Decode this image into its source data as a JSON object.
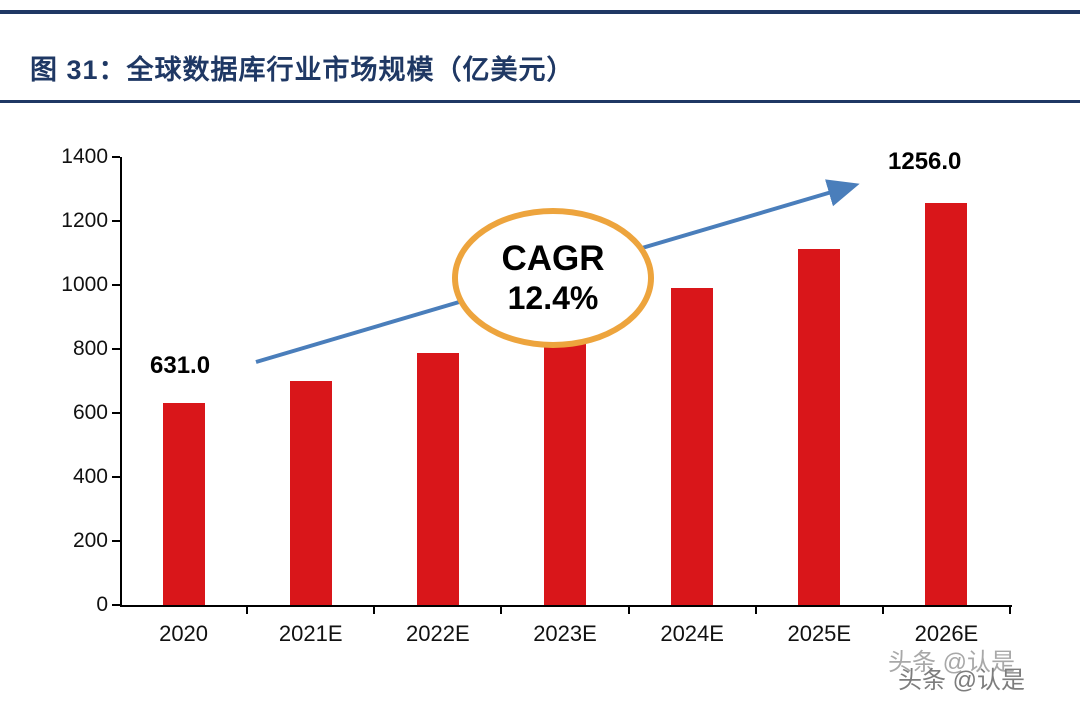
{
  "header": {
    "title": "图 31：全球数据库行业市场规模（亿美元）"
  },
  "chart_data": {
    "type": "bar",
    "title": "全球数据库行业市场规模（亿美元）",
    "unit": "亿美元",
    "categories": [
      "2020",
      "2021E",
      "2022E",
      "2023E",
      "2024E",
      "2025E",
      "2026E"
    ],
    "values": [
      631,
      700,
      787,
      882,
      992,
      1113,
      1256
    ],
    "xlabel": "",
    "ylabel": "",
    "ylim": [
      0,
      1400
    ],
    "yticks": [
      0,
      200,
      400,
      600,
      800,
      1000,
      1200,
      1400
    ],
    "grid": false,
    "legend": "none",
    "bar_color": "#d9161a",
    "annotations": {
      "first_label": "631.0",
      "last_label": "1256.0",
      "cagr_line1": "CAGR",
      "cagr_line2": "12.4%",
      "arrow_color": "#4a7ebb",
      "ellipse_color": "#eda43d"
    }
  },
  "colors": {
    "accent_navy": "#1f3864",
    "bar_red": "#d9161a",
    "arrow_blue": "#4a7ebb",
    "ellipse_orange": "#eda43d"
  },
  "watermark": {
    "text": "头条 @认是"
  }
}
